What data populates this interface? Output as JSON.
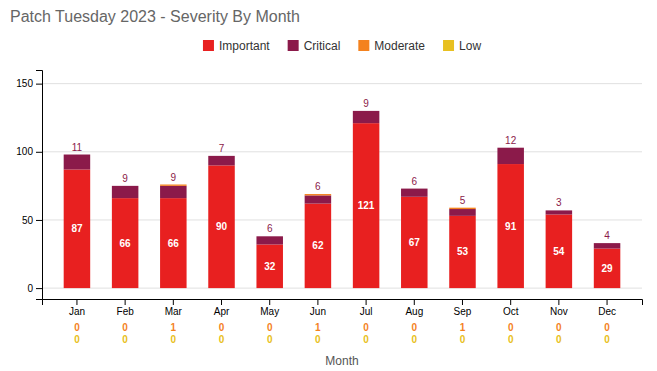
{
  "chart_data": {
    "type": "bar",
    "stacked": true,
    "data_labels": true,
    "grid": true,
    "title": "Patch Tuesday 2023 - Severity By Month",
    "xlabel": "Month",
    "categories": [
      "Jan",
      "Feb",
      "Mar",
      "Apr",
      "May",
      "Jun",
      "Jul",
      "Aug",
      "Sep",
      "Oct",
      "Nov",
      "Dec"
    ],
    "series": [
      {
        "name": "Important",
        "color": "#E82020",
        "values": [
          87,
          66,
          66,
          90,
          32,
          62,
          121,
          67,
          53,
          91,
          54,
          29
        ]
      },
      {
        "name": "Critical",
        "color": "#8B1A4A",
        "values": [
          11,
          9,
          9,
          7,
          6,
          6,
          9,
          6,
          5,
          12,
          3,
          4
        ]
      },
      {
        "name": "Moderate",
        "color": "#F4821E",
        "values": [
          0,
          0,
          1,
          0,
          0,
          1,
          0,
          0,
          1,
          0,
          0,
          0
        ]
      },
      {
        "name": "Low",
        "color": "#E8C020",
        "values": [
          0,
          0,
          0,
          0,
          0,
          0,
          0,
          0,
          0,
          0,
          0,
          0
        ]
      }
    ],
    "ylim": [
      -8,
      160
    ],
    "yticks": [
      0,
      50,
      100,
      150
    ]
  }
}
